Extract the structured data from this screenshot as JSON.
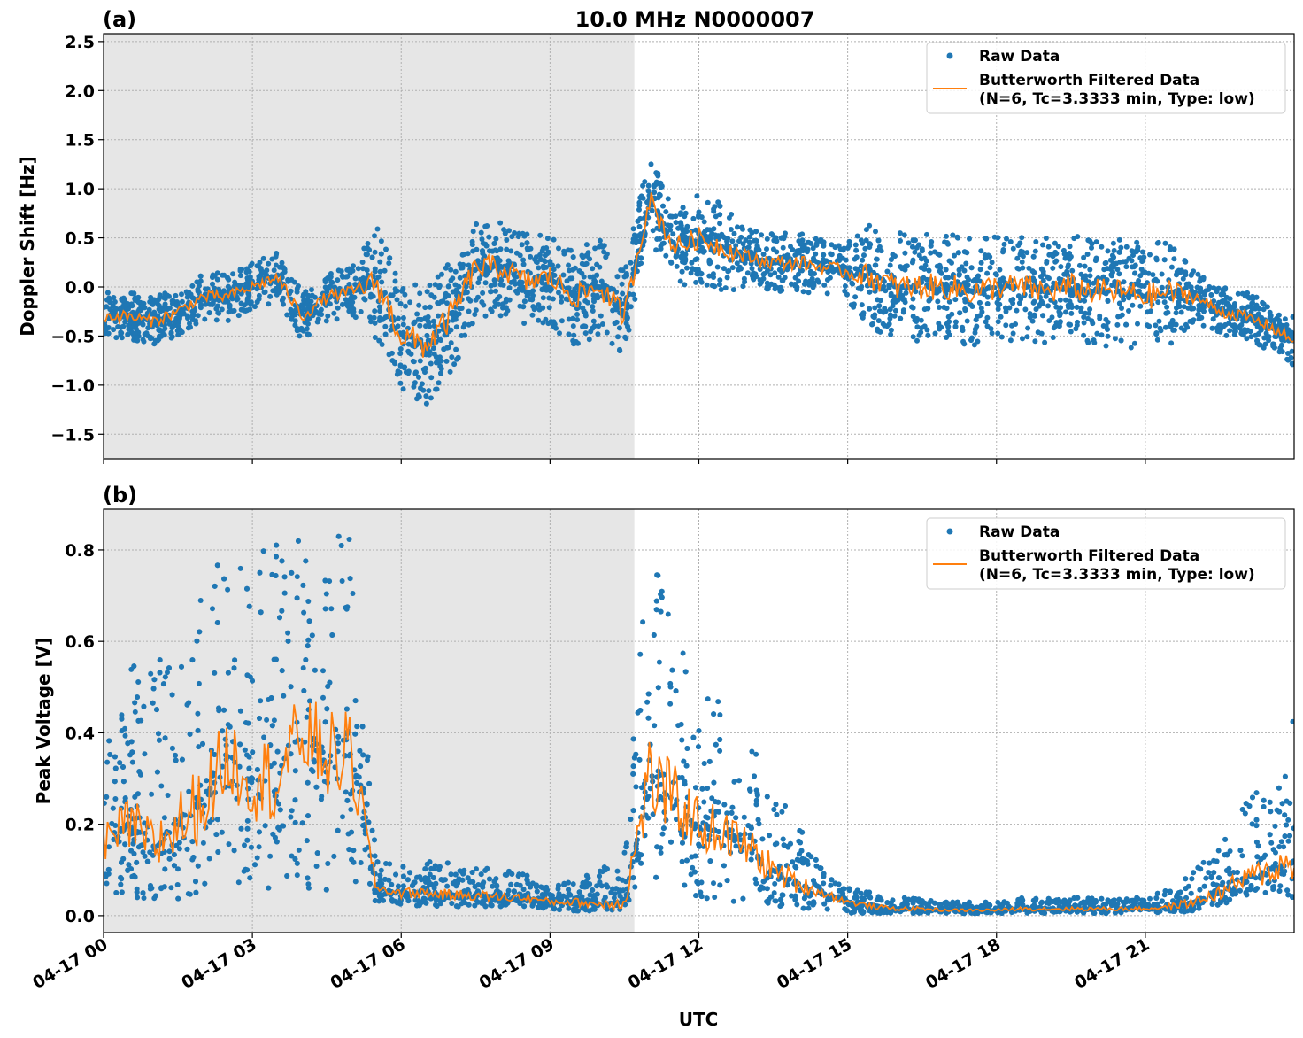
{
  "title": "10.0 MHz N0000007",
  "colors": {
    "raw": "#1f77b4",
    "filtered": "#ff7f0e",
    "shade": "#e6e6e6",
    "grid": "#b0b0b0"
  },
  "chart_data": [
    {
      "type": "scatter",
      "panel_label": "(a)",
      "xlabel": "",
      "ylabel": "Doppler Shift [Hz]",
      "xlim_hours": [
        0,
        24
      ],
      "ylim": [
        -1.75,
        2.58
      ],
      "yticks": [
        "2.5",
        "2.0",
        "1.5",
        "1.0",
        "0.5",
        "0.0",
        "−0.5",
        "−1.0",
        "−1.5"
      ],
      "ytick_values": [
        2.5,
        2.0,
        1.5,
        1.0,
        0.5,
        0.0,
        -0.5,
        -1.0,
        -1.5
      ],
      "grid": true,
      "shaded_interval_hours": [
        0,
        10.7
      ],
      "legend": {
        "position": "top-right",
        "entries": [
          "Raw Data",
          "Butterworth Filtered Data",
          "(N=6, Tc=3.3333 min, Type: low)"
        ]
      },
      "x_hours": [
        0,
        0.5,
        1,
        1.5,
        2,
        2.5,
        3,
        3.5,
        4,
        4.5,
        5,
        5.5,
        6,
        6.5,
        7,
        7.5,
        8,
        8.5,
        9,
        9.5,
        10,
        10.5,
        11,
        11.5,
        12,
        12.5,
        13,
        13.5,
        14,
        14.5,
        15,
        15.5,
        16,
        16.5,
        17,
        17.5,
        18,
        18.5,
        19,
        19.5,
        20,
        20.5,
        21,
        21.5,
        22,
        22.5,
        23,
        23.5,
        24
      ],
      "series": [
        {
          "name": "Butterworth Filtered Data",
          "values": [
            -0.3,
            -0.3,
            -0.35,
            -0.25,
            -0.1,
            -0.1,
            0,
            0.1,
            -0.3,
            -0.1,
            -0.05,
            0.05,
            -0.5,
            -0.6,
            -0.3,
            0.2,
            0.2,
            0.05,
            0.1,
            -0.1,
            0,
            -0.3,
            0.9,
            0.4,
            0.5,
            0.4,
            0.3,
            0.25,
            0.25,
            0.2,
            0.15,
            0.1,
            0,
            0,
            0,
            -0.05,
            0,
            0,
            -0.05,
            0,
            -0.05,
            -0.05,
            -0.1,
            -0.05,
            -0.1,
            -0.25,
            -0.3,
            -0.4,
            -0.55
          ]
        },
        {
          "name": "Raw Data",
          "range_min": [
            -0.55,
            -0.55,
            -0.6,
            -0.5,
            -0.35,
            -0.35,
            -0.25,
            -0.15,
            -0.55,
            -0.35,
            -0.3,
            -0.55,
            -1.1,
            -1.2,
            -0.9,
            -0.3,
            -0.3,
            -0.45,
            -0.4,
            -0.6,
            -0.5,
            -0.8,
            0.45,
            -0.05,
            0.05,
            -0.05,
            0,
            -0.05,
            -0.05,
            -0.1,
            -0.15,
            -0.45,
            -0.55,
            -0.55,
            -0.55,
            -0.6,
            -0.55,
            -0.55,
            -0.6,
            -0.55,
            -0.6,
            -0.6,
            -0.65,
            -0.6,
            -0.35,
            -0.5,
            -0.55,
            -0.65,
            -0.8
          ],
          "range_max": [
            -0.05,
            -0.05,
            -0.1,
            0,
            0.15,
            0.15,
            0.25,
            0.35,
            -0.05,
            0.15,
            0.2,
            0.65,
            0.1,
            0,
            0.3,
            0.7,
            0.7,
            0.55,
            0.6,
            0.4,
            0.5,
            0.2,
            1.35,
            0.85,
            0.95,
            0.85,
            0.6,
            0.55,
            0.55,
            0.5,
            0.45,
            0.65,
            0.55,
            0.55,
            0.55,
            0.5,
            0.55,
            0.55,
            0.5,
            0.55,
            0.5,
            0.5,
            0.45,
            0.5,
            0.15,
            0,
            -0.05,
            -0.15,
            -0.3
          ]
        }
      ]
    },
    {
      "type": "scatter",
      "panel_label": "(b)",
      "xlabel": "UTC",
      "ylabel": "Peak Voltage [V]",
      "xlim_hours": [
        0,
        24
      ],
      "ylim": [
        -0.037,
        0.889
      ],
      "yticks": [
        "0.8",
        "0.6",
        "0.4",
        "0.2",
        "0.0"
      ],
      "ytick_values": [
        0.8,
        0.6,
        0.4,
        0.2,
        0.0
      ],
      "xticks": [
        "04-17 00",
        "04-17 03",
        "04-17 06",
        "04-17 09",
        "04-17 12",
        "04-17 15",
        "04-17 18",
        "04-17 21"
      ],
      "xtick_hours": [
        0,
        3,
        6,
        9,
        12,
        15,
        18,
        21
      ],
      "grid": true,
      "shaded_interval_hours": [
        0,
        10.7
      ],
      "legend": {
        "position": "top-right",
        "entries": [
          "Raw Data",
          "Butterworth Filtered Data",
          "(N=6, Tc=3.3333 min, Type: low)"
        ]
      },
      "x_hours": [
        0,
        0.5,
        1,
        1.5,
        2,
        2.5,
        3,
        3.5,
        4,
        4.5,
        5,
        5.5,
        6,
        6.5,
        7,
        7.5,
        8,
        8.5,
        9,
        9.5,
        10,
        10.5,
        11,
        11.5,
        12,
        12.5,
        13,
        13.5,
        14,
        14.5,
        15,
        15.5,
        16,
        16.5,
        17,
        17.5,
        18,
        18.5,
        19,
        19.5,
        20,
        20.5,
        21,
        21.5,
        22,
        22.5,
        23,
        23.5,
        24
      ],
      "series": [
        {
          "name": "Butterworth Filtered Data",
          "values": [
            0.15,
            0.2,
            0.15,
            0.2,
            0.25,
            0.35,
            0.3,
            0.3,
            0.4,
            0.35,
            0.35,
            0.06,
            0.05,
            0.05,
            0.045,
            0.045,
            0.04,
            0.04,
            0.03,
            0.03,
            0.025,
            0.03,
            0.3,
            0.25,
            0.2,
            0.18,
            0.15,
            0.1,
            0.07,
            0.05,
            0.03,
            0.02,
            0.015,
            0.015,
            0.012,
            0.012,
            0.012,
            0.015,
            0.015,
            0.015,
            0.015,
            0.015,
            0.015,
            0.02,
            0.03,
            0.05,
            0.08,
            0.1,
            0.12
          ]
        },
        {
          "name": "Raw Data",
          "range_min": [
            0.03,
            0.03,
            0.02,
            0.03,
            0.04,
            0.05,
            0.05,
            0.05,
            0.05,
            0.05,
            0.05,
            0.03,
            0.02,
            0.02,
            0.02,
            0.02,
            0.02,
            0.015,
            0.015,
            0.01,
            0.01,
            0.01,
            0.05,
            0.05,
            0.04,
            0.03,
            0.03,
            0.02,
            0.015,
            0.01,
            0.005,
            0.005,
            0.005,
            0.005,
            0.005,
            0.005,
            0.005,
            0.005,
            0.005,
            0.005,
            0.005,
            0.005,
            0.005,
            0.005,
            0.01,
            0.02,
            0.03,
            0.04,
            0.04
          ],
          "range_max": [
            0.4,
            0.55,
            0.55,
            0.65,
            0.75,
            0.8,
            0.8,
            0.82,
            0.82,
            0.84,
            0.84,
            0.12,
            0.12,
            0.12,
            0.12,
            0.11,
            0.11,
            0.09,
            0.08,
            0.08,
            0.1,
            0.15,
            0.84,
            0.7,
            0.55,
            0.45,
            0.4,
            0.28,
            0.2,
            0.1,
            0.06,
            0.05,
            0.04,
            0.04,
            0.03,
            0.03,
            0.03,
            0.04,
            0.04,
            0.04,
            0.04,
            0.04,
            0.04,
            0.06,
            0.1,
            0.15,
            0.25,
            0.3,
            0.45
          ]
        }
      ]
    }
  ]
}
